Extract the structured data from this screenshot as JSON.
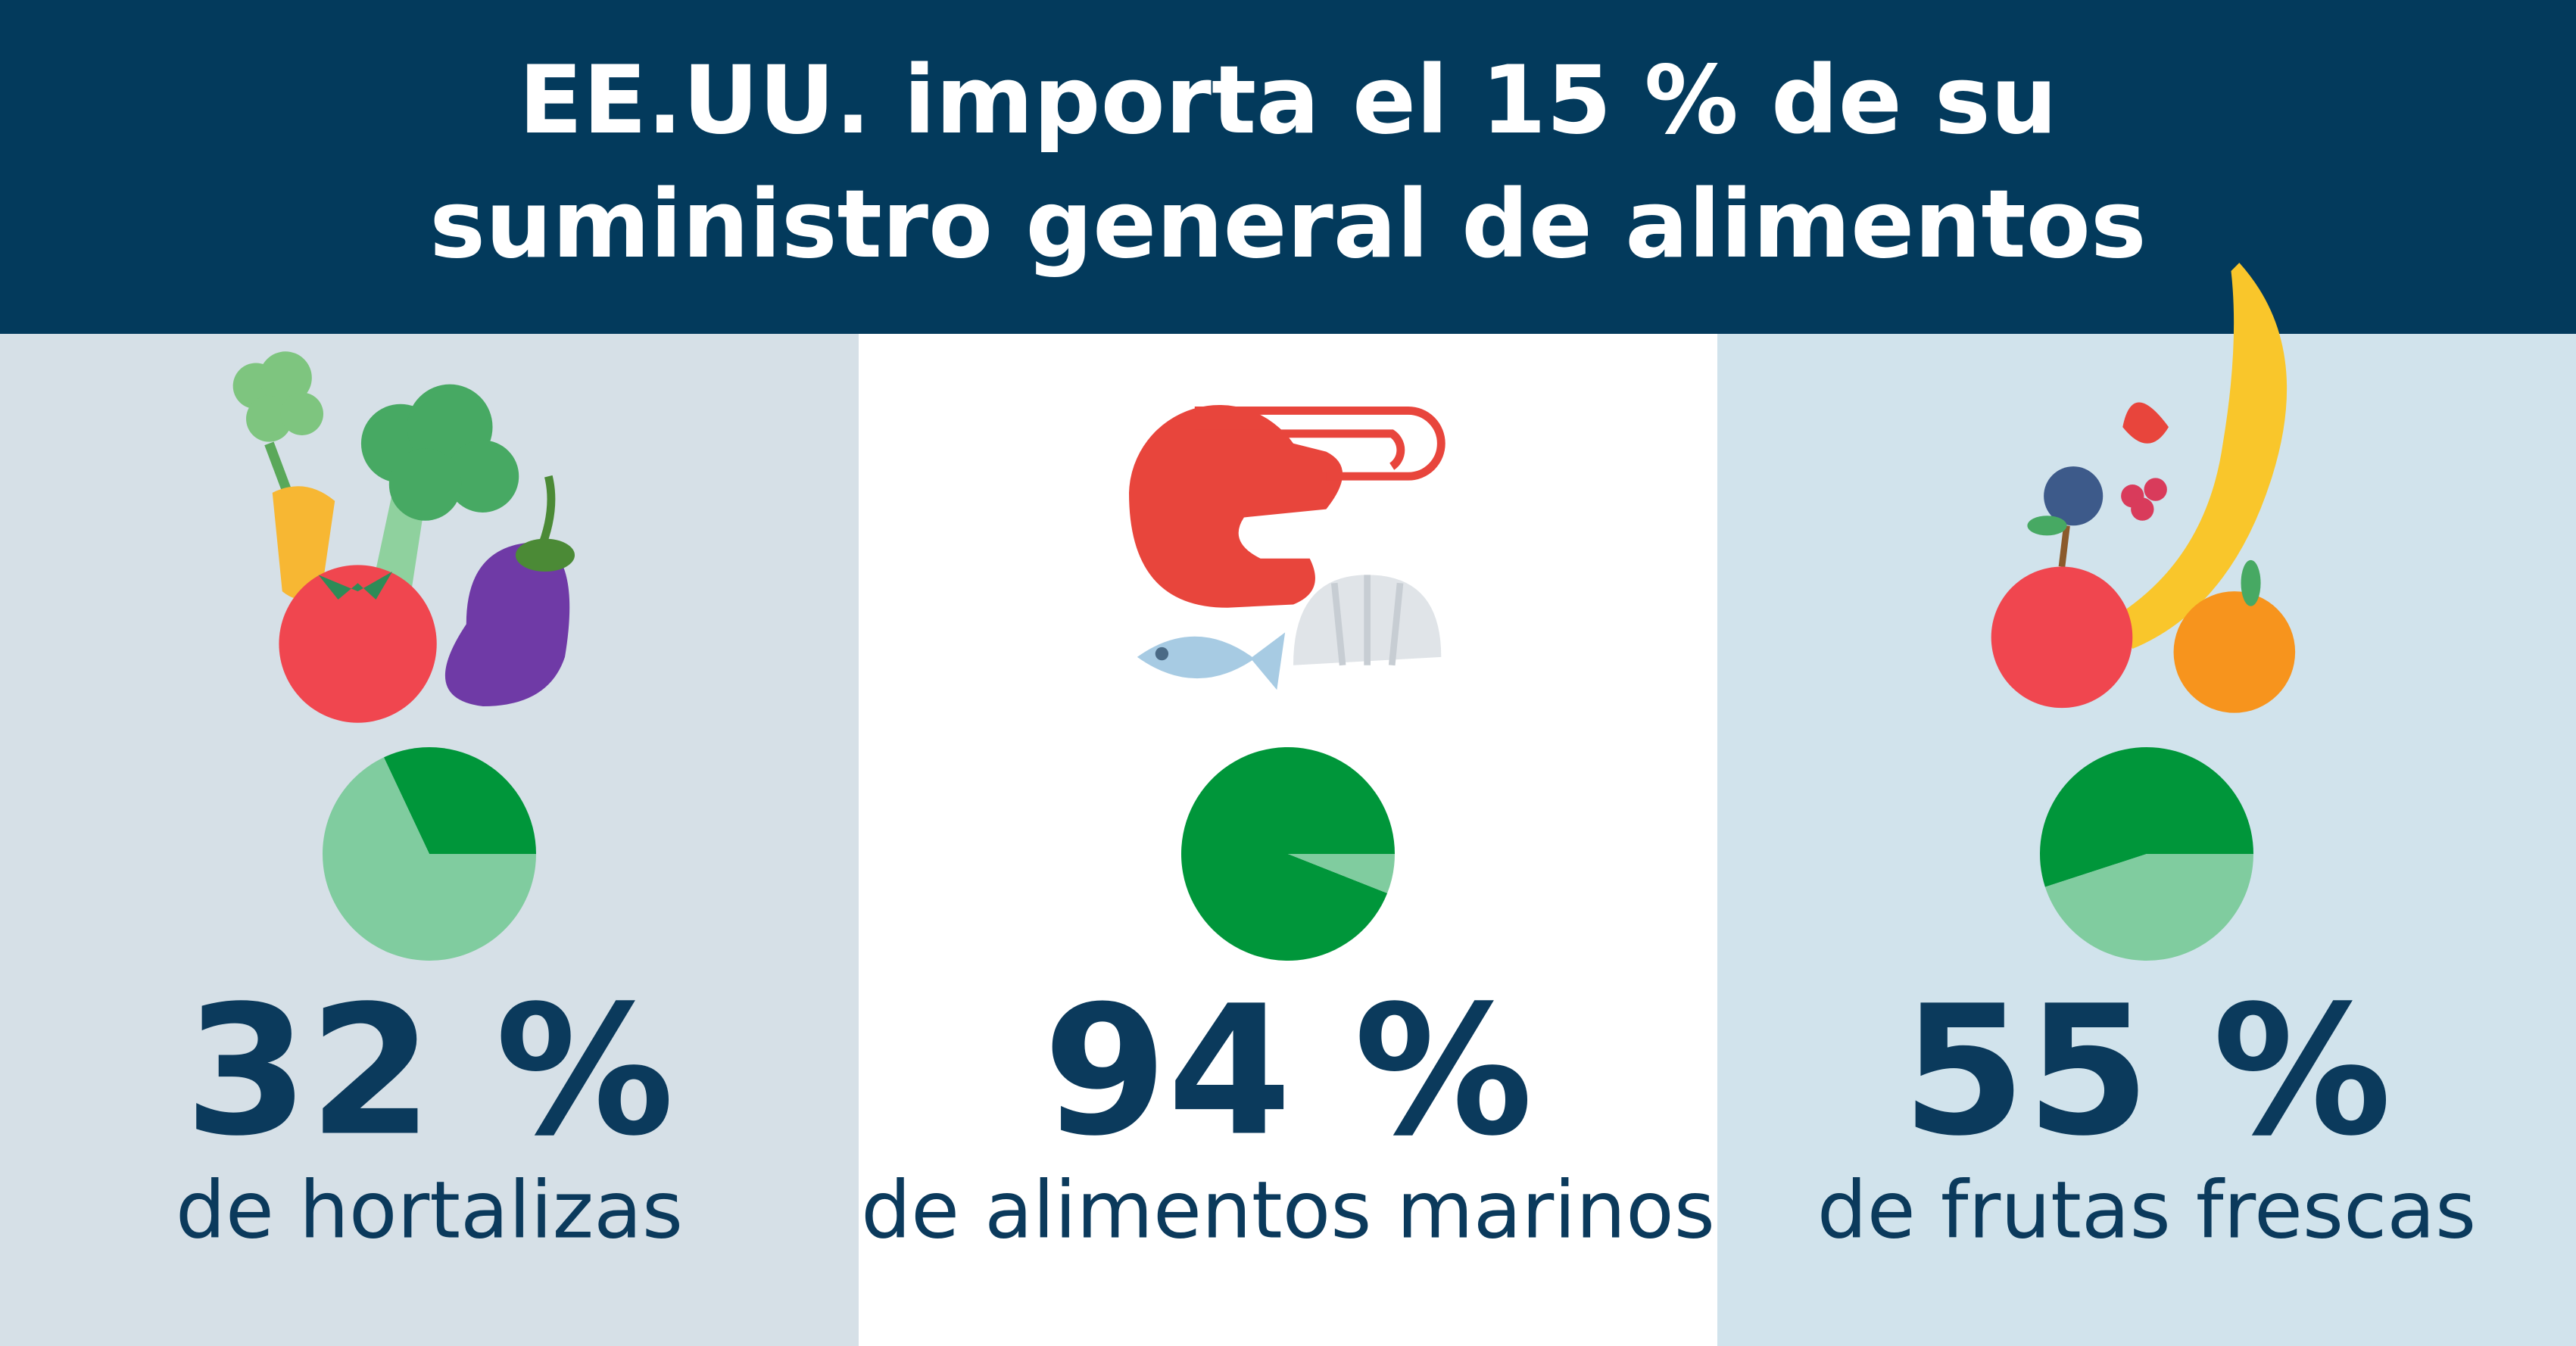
{
  "title": [
    "EE.UU. importa el 15 % de su",
    "suministro general de alimentos"
  ],
  "chart_data": [
    {
      "type": "pie",
      "values": [
        32,
        68
      ],
      "value_labels": [
        "32 %",
        null
      ],
      "caption": "de hortalizas",
      "colors": [
        "#00963a",
        "#80cc9f"
      ],
      "background": "#d6e0e7"
    },
    {
      "type": "pie",
      "values": [
        94,
        6
      ],
      "value_labels": [
        "94 %",
        null
      ],
      "caption": "de alimentos marinos",
      "colors": [
        "#00963a",
        "#80cc9f"
      ],
      "background": "#ffffff"
    },
    {
      "type": "pie",
      "values": [
        55,
        45
      ],
      "value_labels": [
        "55 %",
        null
      ],
      "caption": "de frutas frescas",
      "colors": [
        "#00963a",
        "#80cc9f"
      ],
      "background": "#d1e3ec"
    }
  ]
}
